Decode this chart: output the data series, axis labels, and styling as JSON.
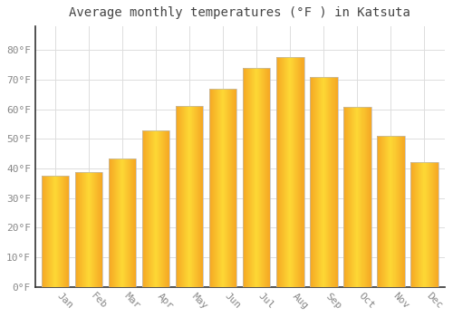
{
  "title": "Average monthly temperatures (°F ) in Katsuta",
  "months": [
    "Jan",
    "Feb",
    "Mar",
    "Apr",
    "May",
    "Jun",
    "Jul",
    "Aug",
    "Sep",
    "Oct",
    "Nov",
    "Dec"
  ],
  "values": [
    37.5,
    38.8,
    43.5,
    53.0,
    61.2,
    67.0,
    74.0,
    77.5,
    71.0,
    60.7,
    51.0,
    42.0
  ],
  "bar_color_outer": "#F5A623",
  "bar_color_inner": "#FDD835",
  "background_color": "#FFFFFF",
  "grid_color": "#DDDDDD",
  "ylim": [
    0,
    88
  ],
  "yticks": [
    0,
    10,
    20,
    30,
    40,
    50,
    60,
    70,
    80
  ],
  "ytick_labels": [
    "0°F",
    "10°F",
    "20°F",
    "30°F",
    "40°F",
    "50°F",
    "60°F",
    "70°F",
    "80°F"
  ],
  "title_fontsize": 10,
  "tick_fontsize": 8,
  "title_color": "#444444",
  "tick_color": "#888888",
  "bar_width": 0.82,
  "gradient_steps": 30
}
